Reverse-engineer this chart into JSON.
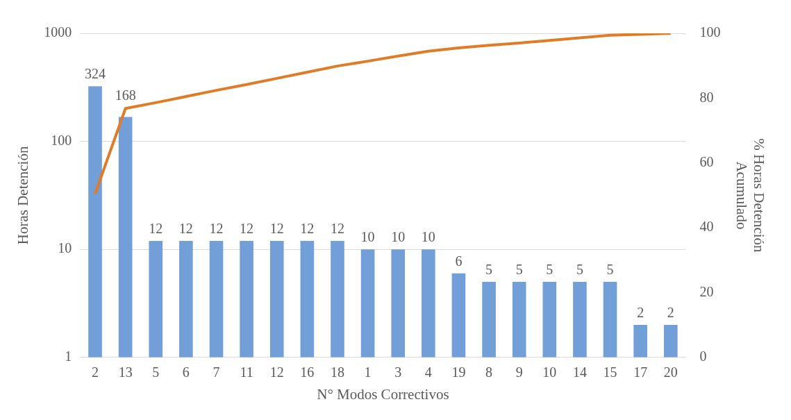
{
  "chart_data": {
    "type": "bar",
    "xlabel": "N° Modos Correctivos",
    "ylabel": "Horas Detención",
    "y2label": "% Horas Detención Acumulado",
    "categories": [
      "2",
      "13",
      "5",
      "6",
      "7",
      "11",
      "12",
      "16",
      "18",
      "1",
      "3",
      "4",
      "19",
      "8",
      "9",
      "10",
      "14",
      "15",
      "17",
      "20"
    ],
    "series": [
      {
        "type": "bar",
        "color": "#729fd8",
        "values": [
          324,
          168,
          12,
          12,
          12,
          12,
          12,
          12,
          12,
          10,
          10,
          10,
          6,
          5,
          5,
          5,
          5,
          5,
          2,
          2
        ],
        "value_labels": [
          "324",
          "168",
          "12",
          "12",
          "12",
          "12",
          "12",
          "12",
          "12",
          "10",
          "10",
          "10",
          "6",
          "5",
          "5",
          "5",
          "5",
          "5",
          "2",
          "2"
        ]
      },
      {
        "type": "line",
        "axis": "y2",
        "color": "#e07b28",
        "marker": "none",
        "values": [
          50.5,
          76.8,
          78.6,
          80.5,
          82.4,
          84.2,
          86.1,
          88.0,
          89.9,
          91.4,
          93.0,
          94.5,
          95.5,
          96.3,
          97.0,
          97.8,
          98.6,
          99.4,
          99.7,
          100
        ]
      }
    ],
    "log": "y",
    "ylim": [
      1,
      1000
    ],
    "yticks": [
      1,
      10,
      100,
      1000
    ],
    "y2lim": [
      0,
      100
    ],
    "y2ticks": [
      0,
      20,
      40,
      60,
      80,
      100
    ],
    "grid": "y",
    "legend": false
  }
}
